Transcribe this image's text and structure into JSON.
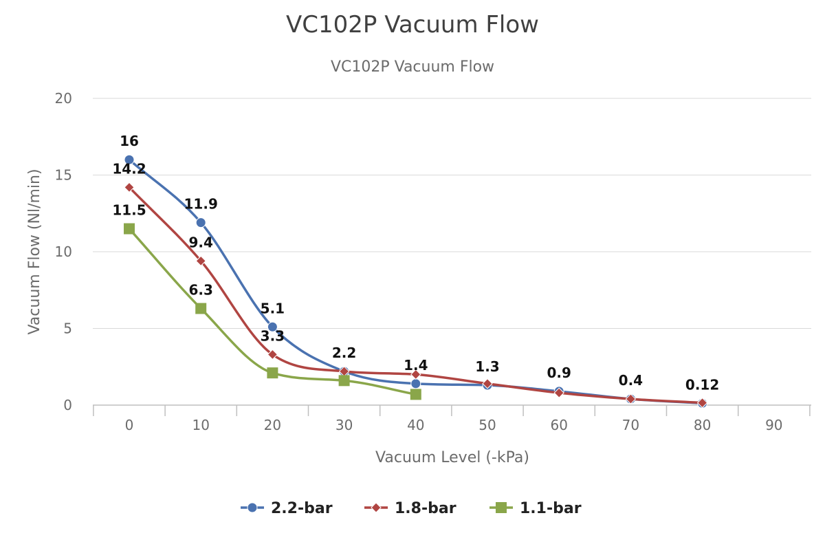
{
  "chart_data": {
    "type": "line",
    "title": "VC102P Vacuum Flow",
    "subtitle": "VC102P Vacuum Flow",
    "xlabel": "Vacuum Level (-kPa)",
    "ylabel": "Vacuum Flow (Nl/min)",
    "x_ticks": [
      0,
      10,
      20,
      30,
      40,
      50,
      60,
      70,
      80,
      90
    ],
    "y_ticks": [
      0,
      5,
      10,
      15,
      20
    ],
    "ylim": [
      0,
      20
    ],
    "grid": true,
    "legend_position": "bottom",
    "series": [
      {
        "name": "2.2-bar",
        "color": "#4a72b0",
        "marker": "circle",
        "x": [
          0,
          10,
          20,
          30,
          40,
          50,
          60,
          70,
          80
        ],
        "values": [
          16,
          11.9,
          5.1,
          2.2,
          1.4,
          1.3,
          0.9,
          0.4,
          0.12
        ],
        "labels": [
          "16",
          "11.9",
          "5.1",
          "2.2",
          "1.4",
          "1.3",
          "0.9",
          "0.4",
          "0.12"
        ]
      },
      {
        "name": "1.8-bar",
        "color": "#b04542",
        "marker": "diamond",
        "x": [
          0,
          10,
          20,
          30,
          40,
          50,
          60,
          70,
          80
        ],
        "values": [
          14.2,
          9.4,
          3.3,
          2.2,
          2.0,
          1.4,
          0.8,
          0.4,
          0.15
        ],
        "labels": [
          "14.2",
          "9.4",
          "3.3",
          "",
          "",
          "",
          "",
          "",
          ""
        ]
      },
      {
        "name": "1.1-bar",
        "color": "#8aa64a",
        "marker": "square",
        "x": [
          0,
          10,
          20,
          30,
          40
        ],
        "values": [
          11.5,
          6.3,
          2.1,
          1.6,
          0.7
        ],
        "labels": [
          "11.5",
          "6.3",
          "",
          "",
          ""
        ]
      }
    ]
  }
}
